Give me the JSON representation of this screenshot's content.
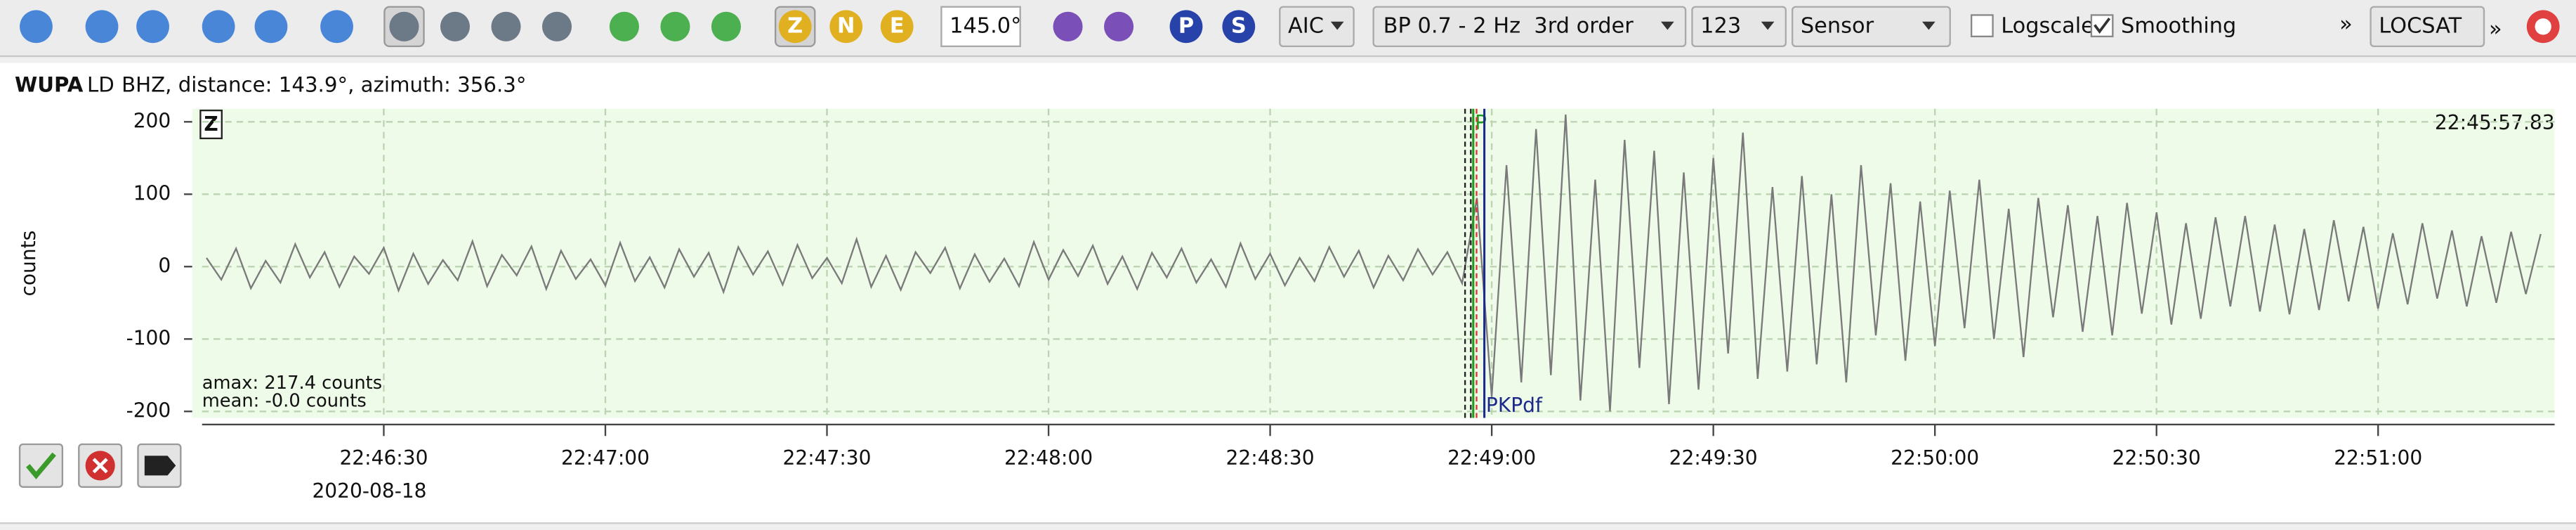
{
  "toolbar": {
    "components": [
      "Z",
      "N",
      "E"
    ],
    "depth": "145.0°",
    "phases": [
      "P",
      "S"
    ],
    "picker": "AIC",
    "filter": "BP 0.7 - 2 Hz  3rd order",
    "channels": "123",
    "units": "Sensor",
    "logscale": "Logscale",
    "smoothing": "Smoothing",
    "more": "»",
    "locator": "LOCSAT",
    "more_right": "»"
  },
  "trace": {
    "station": "WUPA",
    "network": "LD",
    "info": "BHZ, distance: 143.9°, azimuth: 356.3°",
    "component": "Z",
    "end_time": "22:45:57.83",
    "amax": "amax: 217.4 counts",
    "mean": "mean: -0.0 counts",
    "date": "2020-08-18"
  },
  "chart_data": {
    "type": "line",
    "y_label": "counts",
    "grid": true,
    "ylim": [
      -209,
      218
    ],
    "yticks": [
      -200,
      -100,
      0,
      100,
      200
    ],
    "xlim": [
      81965.4,
      82283.9
    ],
    "xticks": [
      {
        "value": 81990,
        "label": "22:46:30"
      },
      {
        "value": 82020,
        "label": "22:47:00"
      },
      {
        "value": 82050,
        "label": "22:47:30"
      },
      {
        "value": 82080,
        "label": "22:48:00"
      },
      {
        "value": 82110,
        "label": "22:48:30"
      },
      {
        "value": 82140,
        "label": "22:49:00"
      },
      {
        "value": 82170,
        "label": "22:49:30"
      },
      {
        "value": 82200,
        "label": "22:50:00"
      },
      {
        "value": 82230,
        "label": "22:50:30"
      },
      {
        "value": 82260,
        "label": "22:51:00"
      }
    ],
    "x": [
      81966,
      81968,
      81970,
      81972,
      81974,
      81976,
      81978,
      81980,
      81982,
      81984,
      81986,
      81988,
      81990,
      81992,
      81994,
      81996,
      81998,
      82000,
      82002,
      82004,
      82006,
      82008,
      82010,
      82012,
      82014,
      82016,
      82018,
      82020,
      82022,
      82024,
      82026,
      82028,
      82030,
      82032,
      82034,
      82036,
      82038,
      82040,
      82042,
      82044,
      82046,
      82048,
      82050,
      82052,
      82054,
      82056,
      82058,
      82060,
      82062,
      82064,
      82066,
      82068,
      82070,
      82072,
      82074,
      82076,
      82078,
      82080,
      82082,
      82084,
      82086,
      82088,
      82090,
      82092,
      82094,
      82096,
      82098,
      82100,
      82102,
      82104,
      82106,
      82108,
      82110,
      82112,
      82114,
      82116,
      82118,
      82120,
      82122,
      82124,
      82126,
      82128,
      82130,
      82132,
      82134,
      82136,
      82138,
      82140,
      82142,
      82144,
      82146,
      82148,
      82150,
      82152,
      82154,
      82156,
      82158,
      82160,
      82162,
      82164,
      82166,
      82168,
      82170,
      82172,
      82174,
      82176,
      82178,
      82180,
      82182,
      82184,
      82186,
      82188,
      82190,
      82192,
      82194,
      82196,
      82198,
      82200,
      82202,
      82204,
      82206,
      82208,
      82210,
      82212,
      82214,
      82216,
      82218,
      82220,
      82222,
      82224,
      82226,
      82228,
      82230,
      82232,
      82234,
      82236,
      82238,
      82240,
      82242,
      82244,
      82246,
      82248,
      82250,
      82252,
      82254,
      82256,
      82258,
      82260,
      82262,
      82264,
      82266,
      82268,
      82270,
      82272,
      82274,
      82276,
      82278,
      82280,
      82282
    ],
    "series": [
      {
        "color": "#7a7a7a",
        "values": [
          12,
          -18,
          25,
          -30,
          8,
          -22,
          31,
          -15,
          20,
          -28,
          14,
          -10,
          26,
          -33,
          18,
          -24,
          9,
          -19,
          35,
          -27,
          16,
          -12,
          28,
          -31,
          22,
          -17,
          10,
          -26,
          33,
          -20,
          13,
          -29,
          24,
          -14,
          19,
          -35,
          27,
          -11,
          21,
          -25,
          30,
          -16,
          12,
          -23,
          38,
          -28,
          15,
          -32,
          20,
          -9,
          26,
          -30,
          17,
          -21,
          11,
          -27,
          34,
          -18,
          23,
          -13,
          29,
          -24,
          14,
          -31,
          19,
          -15,
          25,
          -22,
          10,
          -28,
          32,
          -17,
          18,
          -26,
          12,
          -20,
          27,
          -14,
          22,
          -29,
          15,
          -19,
          24,
          -11,
          20,
          -23,
          95,
          -180,
          140,
          -160,
          190,
          -150,
          210,
          -185,
          120,
          -200,
          175,
          -140,
          160,
          -190,
          130,
          -170,
          150,
          -120,
          185,
          -155,
          110,
          -145,
          125,
          -135,
          100,
          -160,
          140,
          -95,
          115,
          -130,
          90,
          -110,
          105,
          -85,
          120,
          -100,
          80,
          -125,
          95,
          -70,
          85,
          -90,
          70,
          -95,
          88,
          -65,
          75,
          -80,
          60,
          -72,
          68,
          -55,
          70,
          -62,
          58,
          -66,
          52,
          -60,
          64,
          -48,
          55,
          -58,
          46,
          -52,
          60,
          -44,
          50,
          -55,
          42,
          -50,
          48,
          -38,
          45
        ]
      }
    ],
    "annotations": [
      {
        "text": "P",
        "x": 82137.5,
        "color": "#1f9a1f"
      },
      {
        "text": "PKPdf",
        "x": 82139,
        "color": "#1c2a8c"
      }
    ]
  }
}
